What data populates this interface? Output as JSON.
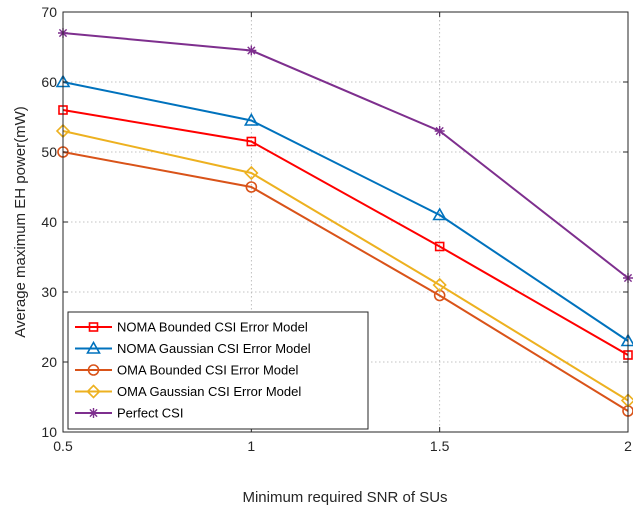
{
  "chart_data": {
    "type": "line",
    "title": "",
    "xlabel": "Minimum required SNR of SUs",
    "ylabel": "Average maximum EH power(mW)",
    "x": [
      0.5,
      1,
      1.5,
      2
    ],
    "xlim": [
      0.5,
      2
    ],
    "ylim": [
      10,
      70
    ],
    "xticks": [
      0.5,
      1,
      1.5,
      2
    ],
    "xtick_labels": [
      "0.5",
      "1",
      "1.5",
      "2"
    ],
    "yticks": [
      10,
      20,
      30,
      40,
      50,
      60,
      70
    ],
    "ytick_labels": [
      "10",
      "20",
      "30",
      "40",
      "50",
      "60",
      "70"
    ],
    "grid": true,
    "legend_position": "bottom-left",
    "series": [
      {
        "name": "NOMA Bounded CSI Error Model",
        "values": [
          56,
          51.5,
          36.5,
          21
        ],
        "color": "#ff0000",
        "marker": "square"
      },
      {
        "name": "NOMA Gaussian CSI Error Model",
        "values": [
          60,
          54.5,
          41,
          23
        ],
        "color": "#0072bd",
        "marker": "triangle"
      },
      {
        "name": "OMA Bounded CSI Error Model",
        "values": [
          50,
          45,
          29.5,
          13
        ],
        "color": "#d95319",
        "marker": "circle"
      },
      {
        "name": "OMA Gaussian CSI Error Model",
        "values": [
          53,
          47,
          31,
          14.5
        ],
        "color": "#edb120",
        "marker": "diamond"
      },
      {
        "name": "Perfect CSI",
        "values": [
          67,
          64.5,
          53,
          32
        ],
        "color": "#7e2f8e",
        "marker": "asterisk"
      }
    ]
  }
}
